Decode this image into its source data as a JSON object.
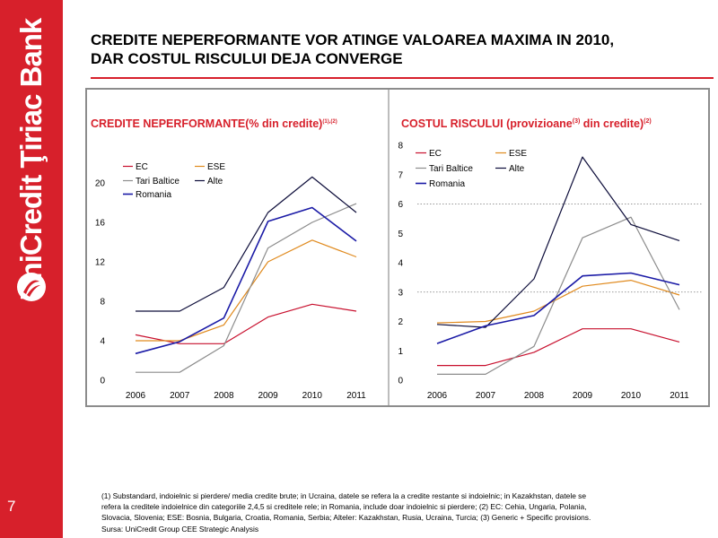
{
  "sidebar": {
    "brand_name": "UniCredit Ţiriac Bank",
    "page_number": "7",
    "color": "#d7202b"
  },
  "slide": {
    "title_line1": "CREDITE NEPERFORMANTE VOR ATINGE VALOAREA MAXIMA IN 2010,",
    "title_line2": "DAR COSTUL RISCULUI DEJA CONVERGE",
    "accent_color": "#d7202b"
  },
  "footnote": {
    "lines": [
      "(1) Substandard, indoielnic si pierdere/ media credite brute; in Ucraina, datele se refera la a credite restante si indoielnic; in Kazakhstan, datele se",
      "refera la creditele indoielnice din categoriile 2,4,5 si creditele rele; in Romania, include doar indoielnic si pierdere; (2) EC: Cehia, Ungaria, Polania,",
      "Slovacia, Slovenia; ESE: Bosnia, Bulgaria, Croatia, Romania, Serbia; Alteler: Kazakhstan, Rusia, Ucraina, Turcia; (3) Generic + Specific provisions.",
      "Sursa: UniCredit Group CEE Strategic Analysis"
    ]
  },
  "chart_data": [
    {
      "type": "line",
      "title": "CREDITE NEPERFORMANTE(% din credite)",
      "title_sup": "(1),(2)",
      "xlabel": "",
      "ylabel": "",
      "x": [
        "2006",
        "2007",
        "2008",
        "2009",
        "2010",
        "2011"
      ],
      "y_ticks": [
        "0",
        "4",
        "8",
        "12",
        "16",
        "20"
      ],
      "ylim": [
        0,
        24
      ],
      "grid": false,
      "legend": [
        {
          "label": "EC",
          "series": 0
        },
        {
          "label": "ESE",
          "series": 1
        },
        {
          "label": "Tari Baltice",
          "series": 2
        },
        {
          "label": "Alte",
          "series": 3
        },
        {
          "label": "Romania",
          "series": 4
        }
      ],
      "series": [
        {
          "name": "EC",
          "color": "#c8102e",
          "width": 1.2,
          "values": [
            4.6,
            3.7,
            3.7,
            6.4,
            7.7,
            7.0
          ]
        },
        {
          "name": "ESE",
          "color": "#e08a1e",
          "width": 1.2,
          "values": [
            4.0,
            4.0,
            5.6,
            12.0,
            14.2,
            12.5
          ]
        },
        {
          "name": "Tari Baltice",
          "color": "#8c8c8c",
          "width": 1.2,
          "values": [
            0.8,
            0.8,
            3.5,
            13.4,
            16.0,
            17.9
          ]
        },
        {
          "name": "Alte",
          "color": "#0d0d3a",
          "width": 1.2,
          "values": [
            7.0,
            7.0,
            9.4,
            17.0,
            20.6,
            17.0
          ]
        },
        {
          "name": "Romania",
          "color": "#1a1aa6",
          "width": 1.6,
          "values": [
            2.7,
            3.9,
            6.3,
            16.1,
            17.5,
            14.1
          ]
        }
      ]
    },
    {
      "type": "line",
      "title": "COSTUL RISCULUI (provizioane",
      "title_sup_mid": "(3)",
      "title_tail": " din credite)",
      "title_sup": "(2)",
      "xlabel": "",
      "ylabel": "",
      "x": [
        "2006",
        "2007",
        "2008",
        "2009",
        "2010",
        "2011"
      ],
      "y_ticks": [
        "0",
        "1",
        "2",
        "3",
        "4",
        "5",
        "6",
        "7",
        "8"
      ],
      "ylim": [
        0,
        8
      ],
      "grid": true,
      "gridlines_at": [
        3,
        6
      ],
      "legend": [
        {
          "label": "EC",
          "series": 0
        },
        {
          "label": "ESE",
          "series": 1
        },
        {
          "label": "Tari Baltice",
          "series": 2
        },
        {
          "label": "Alte",
          "series": 3
        },
        {
          "label": "Romania",
          "series": 4
        }
      ],
      "series": [
        {
          "name": "EC",
          "color": "#c8102e",
          "width": 1.2,
          "values": [
            0.5,
            0.5,
            0.95,
            1.75,
            1.75,
            1.3
          ]
        },
        {
          "name": "ESE",
          "color": "#e08a1e",
          "width": 1.2,
          "values": [
            1.95,
            2.0,
            2.35,
            3.2,
            3.4,
            2.9
          ]
        },
        {
          "name": "Tari Baltice",
          "color": "#8c8c8c",
          "width": 1.2,
          "values": [
            0.2,
            0.2,
            1.15,
            4.85,
            5.55,
            2.4
          ]
        },
        {
          "name": "Alte",
          "color": "#0d0d3a",
          "width": 1.2,
          "values": [
            1.9,
            1.8,
            3.45,
            7.6,
            5.3,
            4.75
          ]
        },
        {
          "name": "Romania",
          "color": "#1a1aa6",
          "width": 1.6,
          "values": [
            1.25,
            1.85,
            2.2,
            3.55,
            3.65,
            3.25
          ]
        }
      ]
    }
  ]
}
